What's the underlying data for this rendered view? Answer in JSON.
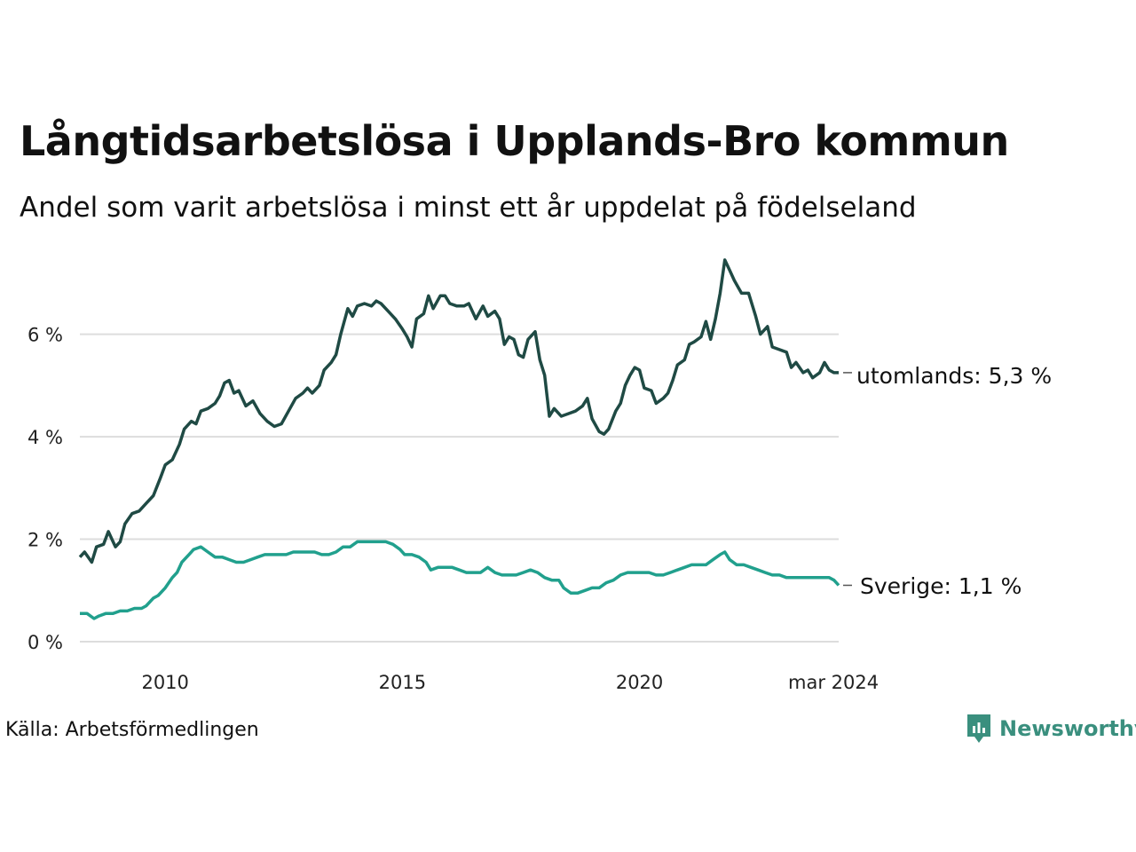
{
  "title": "Långtidsarbetslösa i Upplands-Bro kommun",
  "subtitle": "Andel som varit arbetslösa i minst ett år uppdelat på födelseland",
  "source": "Källa: Arbetsförmedlingen",
  "brand": "Newsworthy",
  "colors": {
    "utomlands": "#1f4a44",
    "sverige": "#21a08d",
    "grid": "#dddddd",
    "brand": "#3a8f7e"
  },
  "chart_data": {
    "type": "line",
    "title": "Långtidsarbetslösa i Upplands-Bro kommun",
    "xlabel": "",
    "ylabel": "",
    "xlim": [
      2008.2,
      2024.2
    ],
    "ylim": [
      0,
      7.5
    ],
    "y_ticks": [
      {
        "value": 0,
        "label": "0 %"
      },
      {
        "value": 2,
        "label": "2 %"
      },
      {
        "value": 4,
        "label": "4 %"
      },
      {
        "value": 6,
        "label": "6 %"
      }
    ],
    "x_ticks": [
      {
        "value": 2010,
        "label": "2010"
      },
      {
        "value": 2015,
        "label": "2015"
      },
      {
        "value": 2020,
        "label": "2020"
      },
      {
        "value": 2024.2,
        "label": "mar 2024"
      }
    ],
    "grid": true,
    "series": [
      {
        "name": "utomlands",
        "end_label": "utomlands: 5,3 %",
        "points": [
          [
            2008.2,
            1.65
          ],
          [
            2008.3,
            1.75
          ],
          [
            2008.45,
            1.55
          ],
          [
            2008.55,
            1.85
          ],
          [
            2008.7,
            1.9
          ],
          [
            2008.8,
            2.15
          ],
          [
            2008.95,
            1.85
          ],
          [
            2009.05,
            1.95
          ],
          [
            2009.15,
            2.3
          ],
          [
            2009.3,
            2.5
          ],
          [
            2009.45,
            2.55
          ],
          [
            2009.6,
            2.7
          ],
          [
            2009.75,
            2.85
          ],
          [
            2009.9,
            3.2
          ],
          [
            2010.0,
            3.45
          ],
          [
            2010.15,
            3.55
          ],
          [
            2010.3,
            3.85
          ],
          [
            2010.4,
            4.15
          ],
          [
            2010.55,
            4.3
          ],
          [
            2010.65,
            4.25
          ],
          [
            2010.75,
            4.5
          ],
          [
            2010.9,
            4.55
          ],
          [
            2011.05,
            4.65
          ],
          [
            2011.15,
            4.8
          ],
          [
            2011.25,
            5.05
          ],
          [
            2011.35,
            5.1
          ],
          [
            2011.45,
            4.85
          ],
          [
            2011.55,
            4.9
          ],
          [
            2011.7,
            4.6
          ],
          [
            2011.85,
            4.7
          ],
          [
            2012.0,
            4.45
          ],
          [
            2012.15,
            4.3
          ],
          [
            2012.3,
            4.2
          ],
          [
            2012.45,
            4.25
          ],
          [
            2012.6,
            4.5
          ],
          [
            2012.75,
            4.75
          ],
          [
            2012.9,
            4.85
          ],
          [
            2013.0,
            4.95
          ],
          [
            2013.1,
            4.85
          ],
          [
            2013.25,
            5.0
          ],
          [
            2013.35,
            5.3
          ],
          [
            2013.5,
            5.45
          ],
          [
            2013.6,
            5.6
          ],
          [
            2013.7,
            6.0
          ],
          [
            2013.85,
            6.5
          ],
          [
            2013.95,
            6.35
          ],
          [
            2014.05,
            6.55
          ],
          [
            2014.2,
            6.6
          ],
          [
            2014.35,
            6.55
          ],
          [
            2014.45,
            6.65
          ],
          [
            2014.55,
            6.6
          ],
          [
            2014.7,
            6.45
          ],
          [
            2014.85,
            6.3
          ],
          [
            2015.0,
            6.1
          ],
          [
            2015.1,
            5.95
          ],
          [
            2015.2,
            5.75
          ],
          [
            2015.3,
            6.3
          ],
          [
            2015.45,
            6.4
          ],
          [
            2015.55,
            6.75
          ],
          [
            2015.65,
            6.5
          ],
          [
            2015.8,
            6.75
          ],
          [
            2015.9,
            6.75
          ],
          [
            2016.0,
            6.6
          ],
          [
            2016.15,
            6.55
          ],
          [
            2016.3,
            6.55
          ],
          [
            2016.4,
            6.6
          ],
          [
            2016.55,
            6.3
          ],
          [
            2016.7,
            6.55
          ],
          [
            2016.8,
            6.35
          ],
          [
            2016.95,
            6.45
          ],
          [
            2017.05,
            6.3
          ],
          [
            2017.15,
            5.8
          ],
          [
            2017.25,
            5.95
          ],
          [
            2017.35,
            5.9
          ],
          [
            2017.45,
            5.6
          ],
          [
            2017.55,
            5.55
          ],
          [
            2017.65,
            5.9
          ],
          [
            2017.8,
            6.05
          ],
          [
            2017.9,
            5.5
          ],
          [
            2018.0,
            5.2
          ],
          [
            2018.1,
            4.4
          ],
          [
            2018.2,
            4.55
          ],
          [
            2018.35,
            4.4
          ],
          [
            2018.5,
            4.45
          ],
          [
            2018.65,
            4.5
          ],
          [
            2018.8,
            4.6
          ],
          [
            2018.9,
            4.75
          ],
          [
            2019.0,
            4.35
          ],
          [
            2019.15,
            4.1
          ],
          [
            2019.25,
            4.05
          ],
          [
            2019.35,
            4.15
          ],
          [
            2019.5,
            4.5
          ],
          [
            2019.6,
            4.65
          ],
          [
            2019.7,
            5.0
          ],
          [
            2019.8,
            5.2
          ],
          [
            2019.9,
            5.35
          ],
          [
            2020.0,
            5.3
          ],
          [
            2020.1,
            4.95
          ],
          [
            2020.25,
            4.9
          ],
          [
            2020.35,
            4.65
          ],
          [
            2020.5,
            4.75
          ],
          [
            2020.6,
            4.85
          ],
          [
            2020.7,
            5.1
          ],
          [
            2020.8,
            5.4
          ],
          [
            2020.95,
            5.5
          ],
          [
            2021.05,
            5.8
          ],
          [
            2021.15,
            5.85
          ],
          [
            2021.3,
            5.95
          ],
          [
            2021.4,
            6.25
          ],
          [
            2021.5,
            5.9
          ],
          [
            2021.6,
            6.3
          ],
          [
            2021.7,
            6.8
          ],
          [
            2021.8,
            7.45
          ],
          [
            2021.9,
            7.25
          ],
          [
            2022.0,
            7.05
          ],
          [
            2022.15,
            6.8
          ],
          [
            2022.3,
            6.8
          ],
          [
            2022.45,
            6.35
          ],
          [
            2022.55,
            6.0
          ],
          [
            2022.7,
            6.15
          ],
          [
            2022.8,
            5.75
          ],
          [
            2022.95,
            5.7
          ],
          [
            2023.1,
            5.65
          ],
          [
            2023.2,
            5.35
          ],
          [
            2023.3,
            5.45
          ],
          [
            2023.45,
            5.25
          ],
          [
            2023.55,
            5.3
          ],
          [
            2023.65,
            5.15
          ],
          [
            2023.8,
            5.25
          ],
          [
            2023.9,
            5.45
          ],
          [
            2024.0,
            5.3
          ],
          [
            2024.1,
            5.25
          ],
          [
            2024.2,
            5.25
          ]
        ]
      },
      {
        "name": "Sverige",
        "end_label": "Sverige: 1,1 %",
        "points": [
          [
            2008.2,
            0.55
          ],
          [
            2008.35,
            0.55
          ],
          [
            2008.5,
            0.45
          ],
          [
            2008.6,
            0.5
          ],
          [
            2008.75,
            0.55
          ],
          [
            2008.9,
            0.55
          ],
          [
            2009.05,
            0.6
          ],
          [
            2009.2,
            0.6
          ],
          [
            2009.35,
            0.65
          ],
          [
            2009.5,
            0.65
          ],
          [
            2009.6,
            0.7
          ],
          [
            2009.75,
            0.85
          ],
          [
            2009.85,
            0.9
          ],
          [
            2010.0,
            1.05
          ],
          [
            2010.15,
            1.25
          ],
          [
            2010.25,
            1.35
          ],
          [
            2010.35,
            1.55
          ],
          [
            2010.5,
            1.7
          ],
          [
            2010.6,
            1.8
          ],
          [
            2010.75,
            1.85
          ],
          [
            2010.9,
            1.75
          ],
          [
            2011.05,
            1.65
          ],
          [
            2011.2,
            1.65
          ],
          [
            2011.35,
            1.6
          ],
          [
            2011.5,
            1.55
          ],
          [
            2011.65,
            1.55
          ],
          [
            2011.8,
            1.6
          ],
          [
            2011.95,
            1.65
          ],
          [
            2012.1,
            1.7
          ],
          [
            2012.25,
            1.7
          ],
          [
            2012.4,
            1.7
          ],
          [
            2012.55,
            1.7
          ],
          [
            2012.7,
            1.75
          ],
          [
            2012.85,
            1.75
          ],
          [
            2013.0,
            1.75
          ],
          [
            2013.15,
            1.75
          ],
          [
            2013.3,
            1.7
          ],
          [
            2013.45,
            1.7
          ],
          [
            2013.6,
            1.75
          ],
          [
            2013.75,
            1.85
          ],
          [
            2013.9,
            1.85
          ],
          [
            2014.05,
            1.95
          ],
          [
            2014.2,
            1.95
          ],
          [
            2014.35,
            1.95
          ],
          [
            2014.5,
            1.95
          ],
          [
            2014.65,
            1.95
          ],
          [
            2014.8,
            1.9
          ],
          [
            2014.95,
            1.8
          ],
          [
            2015.05,
            1.7
          ],
          [
            2015.2,
            1.7
          ],
          [
            2015.35,
            1.65
          ],
          [
            2015.5,
            1.55
          ],
          [
            2015.6,
            1.4
          ],
          [
            2015.75,
            1.45
          ],
          [
            2015.9,
            1.45
          ],
          [
            2016.05,
            1.45
          ],
          [
            2016.2,
            1.4
          ],
          [
            2016.35,
            1.35
          ],
          [
            2016.5,
            1.35
          ],
          [
            2016.65,
            1.35
          ],
          [
            2016.8,
            1.45
          ],
          [
            2016.95,
            1.35
          ],
          [
            2017.1,
            1.3
          ],
          [
            2017.25,
            1.3
          ],
          [
            2017.4,
            1.3
          ],
          [
            2017.55,
            1.35
          ],
          [
            2017.7,
            1.4
          ],
          [
            2017.85,
            1.35
          ],
          [
            2018.0,
            1.25
          ],
          [
            2018.15,
            1.2
          ],
          [
            2018.3,
            1.2
          ],
          [
            2018.4,
            1.05
          ],
          [
            2018.55,
            0.95
          ],
          [
            2018.7,
            0.95
          ],
          [
            2018.85,
            1.0
          ],
          [
            2019.0,
            1.05
          ],
          [
            2019.15,
            1.05
          ],
          [
            2019.3,
            1.15
          ],
          [
            2019.45,
            1.2
          ],
          [
            2019.6,
            1.3
          ],
          [
            2019.75,
            1.35
          ],
          [
            2019.9,
            1.35
          ],
          [
            2020.05,
            1.35
          ],
          [
            2020.2,
            1.35
          ],
          [
            2020.35,
            1.3
          ],
          [
            2020.5,
            1.3
          ],
          [
            2020.65,
            1.35
          ],
          [
            2020.8,
            1.4
          ],
          [
            2020.95,
            1.45
          ],
          [
            2021.1,
            1.5
          ],
          [
            2021.25,
            1.5
          ],
          [
            2021.4,
            1.5
          ],
          [
            2021.55,
            1.6
          ],
          [
            2021.7,
            1.7
          ],
          [
            2021.8,
            1.75
          ],
          [
            2021.9,
            1.6
          ],
          [
            2022.05,
            1.5
          ],
          [
            2022.2,
            1.5
          ],
          [
            2022.35,
            1.45
          ],
          [
            2022.5,
            1.4
          ],
          [
            2022.65,
            1.35
          ],
          [
            2022.8,
            1.3
          ],
          [
            2022.95,
            1.3
          ],
          [
            2023.1,
            1.25
          ],
          [
            2023.25,
            1.25
          ],
          [
            2023.4,
            1.25
          ],
          [
            2023.55,
            1.25
          ],
          [
            2023.7,
            1.25
          ],
          [
            2023.85,
            1.25
          ],
          [
            2024.0,
            1.25
          ],
          [
            2024.1,
            1.2
          ],
          [
            2024.2,
            1.1
          ]
        ]
      }
    ]
  }
}
